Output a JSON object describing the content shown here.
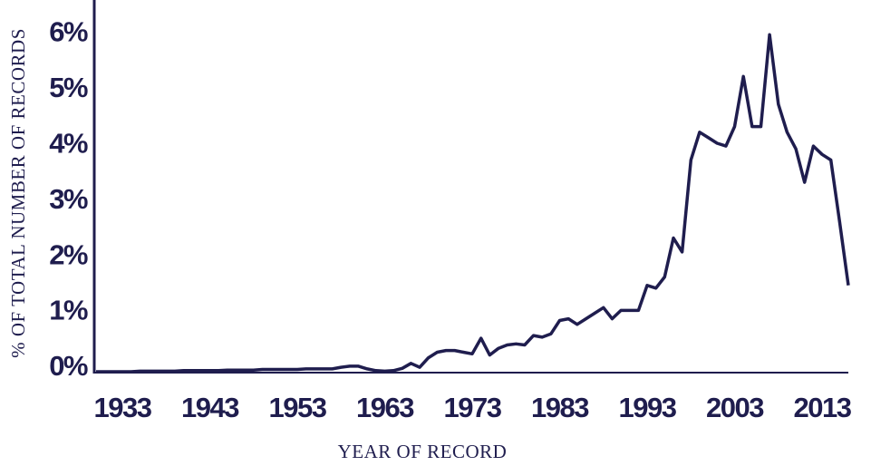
{
  "chart_data": {
    "type": "line",
    "x_label": "YEAR OF RECORD",
    "y_label": "% OF TOTAL NUMBER OF RECORDS",
    "x": [
      1930,
      1931,
      1932,
      1933,
      1934,
      1935,
      1936,
      1937,
      1938,
      1939,
      1940,
      1941,
      1942,
      1943,
      1944,
      1945,
      1946,
      1947,
      1948,
      1949,
      1950,
      1951,
      1952,
      1953,
      1954,
      1955,
      1956,
      1957,
      1958,
      1959,
      1960,
      1961,
      1962,
      1963,
      1964,
      1965,
      1966,
      1967,
      1968,
      1969,
      1970,
      1971,
      1972,
      1973,
      1974,
      1975,
      1976,
      1977,
      1978,
      1979,
      1980,
      1981,
      1982,
      1983,
      1984,
      1985,
      1986,
      1987,
      1988,
      1989,
      1990,
      1991,
      1992,
      1993,
      1994,
      1995,
      1996,
      1997,
      1998,
      1999,
      2000,
      2001,
      2002,
      2003,
      2004,
      2005,
      2006,
      2007,
      2008,
      2009,
      2010,
      2011,
      2012,
      2013,
      2014,
      2015,
      2016
    ],
    "series": [
      {
        "color": "#1f1d4e",
        "values": [
          0,
          0,
          0,
          0,
          0,
          0.01,
          0.01,
          0.01,
          0.01,
          0.01,
          0.02,
          0.02,
          0.02,
          0.02,
          0.02,
          0.03,
          0.03,
          0.03,
          0.03,
          0.04,
          0.04,
          0.04,
          0.04,
          0.04,
          0.05,
          0.05,
          0.05,
          0.05,
          0.08,
          0.1,
          0.1,
          0.05,
          0.02,
          0.01,
          0.02,
          0.06,
          0.15,
          0.08,
          0.25,
          0.35,
          0.38,
          0.38,
          0.35,
          0.32,
          0.6,
          0.3,
          0.42,
          0.48,
          0.5,
          0.48,
          0.65,
          0.62,
          0.68,
          0.92,
          0.95,
          0.85,
          0.95,
          1.05,
          1.15,
          0.95,
          1.1,
          1.1,
          1.1,
          1.55,
          1.5,
          1.7,
          2.4,
          2.15,
          3.8,
          4.3,
          4.2,
          4.1,
          4.05,
          4.4,
          5.3,
          4.4,
          4.4,
          6.05,
          4.8,
          4.3,
          4.0,
          3.4,
          4.05,
          3.9,
          3.8,
          2.7,
          1.55
        ]
      }
    ],
    "xlim": [
      1930,
      2016
    ],
    "xticks": [
      1933,
      1943,
      1953,
      1963,
      1973,
      1983,
      1993,
      2003,
      2013
    ],
    "ylim": [
      0,
      6.2
    ],
    "yticks": [
      {
        "value": 0,
        "label": "0%"
      },
      {
        "value": 1,
        "label": "1%"
      },
      {
        "value": 2,
        "label": "2%"
      },
      {
        "value": 3,
        "label": "3%"
      },
      {
        "value": 4,
        "label": "4%"
      },
      {
        "value": 5,
        "label": "5%"
      },
      {
        "value": 6,
        "label": "6%"
      }
    ],
    "grid": false
  }
}
